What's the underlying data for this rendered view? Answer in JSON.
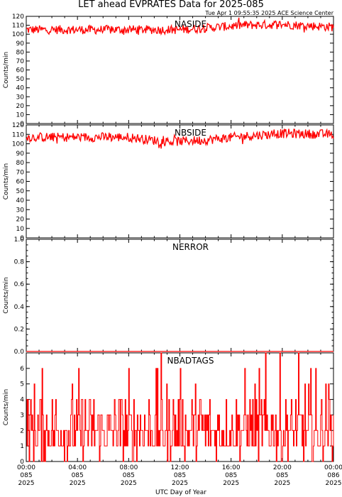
{
  "figure": {
    "title": "LET ahead EVPRATES Data for 2025-085",
    "timestamp": "Tue Apr  1 09:55:35 2025 ACE Science Center",
    "xlabel": "UTC Day of Year",
    "colors": {
      "data": "#ff0000",
      "panel_label": "#0000ff",
      "axes": "#000000"
    }
  },
  "chart_data": [
    {
      "type": "line",
      "name": "NASIDE",
      "ylabel": "Counts/min",
      "ylim": [
        0,
        120
      ],
      "yticks": [
        0,
        10,
        20,
        30,
        40,
        50,
        60,
        70,
        80,
        90,
        100,
        110,
        120
      ],
      "xlim_hours": [
        0,
        24
      ],
      "baseline_profile": {
        "x": [
          0,
          12,
          14,
          17,
          20,
          24
        ],
        "y": [
          105,
          105,
          107,
          110,
          111,
          108
        ]
      },
      "noise": 5
    },
    {
      "type": "line",
      "name": "NBSIDE",
      "ylabel": "Counts/min",
      "ylim": [
        0,
        120
      ],
      "yticks": [
        0,
        10,
        20,
        30,
        40,
        50,
        60,
        70,
        80,
        90,
        100,
        110,
        120
      ],
      "xlim_hours": [
        0,
        24
      ],
      "baseline_profile": {
        "x": [
          0,
          8,
          11,
          14,
          17,
          20,
          24
        ],
        "y": [
          107,
          107,
          102,
          104,
          108,
          111,
          110
        ]
      },
      "noise": 5
    },
    {
      "type": "line",
      "name": "NERROR",
      "ylabel": "Counts/min",
      "ylim": [
        0,
        1.0
      ],
      "yticks": [
        0.0,
        0.2,
        0.4,
        0.6,
        0.8,
        1.0
      ],
      "xlim_hours": [
        0,
        24
      ],
      "baseline_profile": {
        "x": [
          0,
          24
        ],
        "y": [
          0,
          0
        ]
      },
      "noise": 0
    },
    {
      "type": "line",
      "name": "NBADTAGS",
      "ylabel": "Counts/min",
      "ylim": [
        0,
        7
      ],
      "yticks": [
        0,
        1,
        2,
        3,
        4,
        5,
        6
      ],
      "xlim_hours": [
        0,
        24
      ],
      "discrete_distribution": {
        "values": [
          0,
          1,
          2,
          3,
          4,
          5,
          6,
          7
        ],
        "weights": [
          0.06,
          0.3,
          0.3,
          0.18,
          0.1,
          0.03,
          0.02,
          0.01
        ]
      }
    }
  ],
  "x_axis": {
    "ticks": [
      {
        "hour": 0,
        "time": "00:00",
        "doy": "085",
        "year": "2025"
      },
      {
        "hour": 4,
        "time": "04:00",
        "doy": "085",
        "year": "2025"
      },
      {
        "hour": 8,
        "time": "08:00",
        "doy": "085",
        "year": "2025"
      },
      {
        "hour": 12,
        "time": "12:00",
        "doy": "085",
        "year": "2025"
      },
      {
        "hour": 16,
        "time": "16:00",
        "doy": "085",
        "year": "2025"
      },
      {
        "hour": 20,
        "time": "20:00",
        "doy": "085",
        "year": "2025"
      },
      {
        "hour": 24,
        "time": "00:00",
        "doy": "086",
        "year": "2025"
      }
    ]
  }
}
